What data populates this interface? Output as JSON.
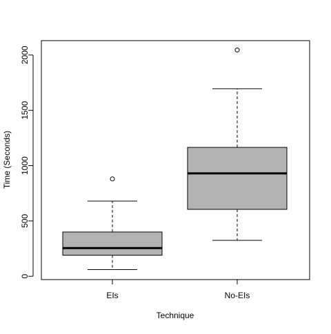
{
  "chart_data": {
    "type": "box",
    "xlabel": "Technique",
    "ylabel": "Time (Seconds)",
    "categories": [
      "EIs",
      "No-EIs"
    ],
    "ylim": [
      -30,
      2130
    ],
    "yticks": [
      0,
      500,
      1000,
      1500,
      2000
    ],
    "boxes": [
      {
        "name": "EIs",
        "whisker_low": 60,
        "q1": 190,
        "median": 255,
        "q3": 400,
        "whisker_high": 680,
        "outliers": [
          880
        ]
      },
      {
        "name": "No-EIs",
        "whisker_low": 325,
        "q1": 605,
        "median": 930,
        "q3": 1165,
        "whisker_high": 1695,
        "outliers": [
          2045
        ]
      }
    ],
    "box_fill": "#b3b3b3",
    "grid": false
  }
}
